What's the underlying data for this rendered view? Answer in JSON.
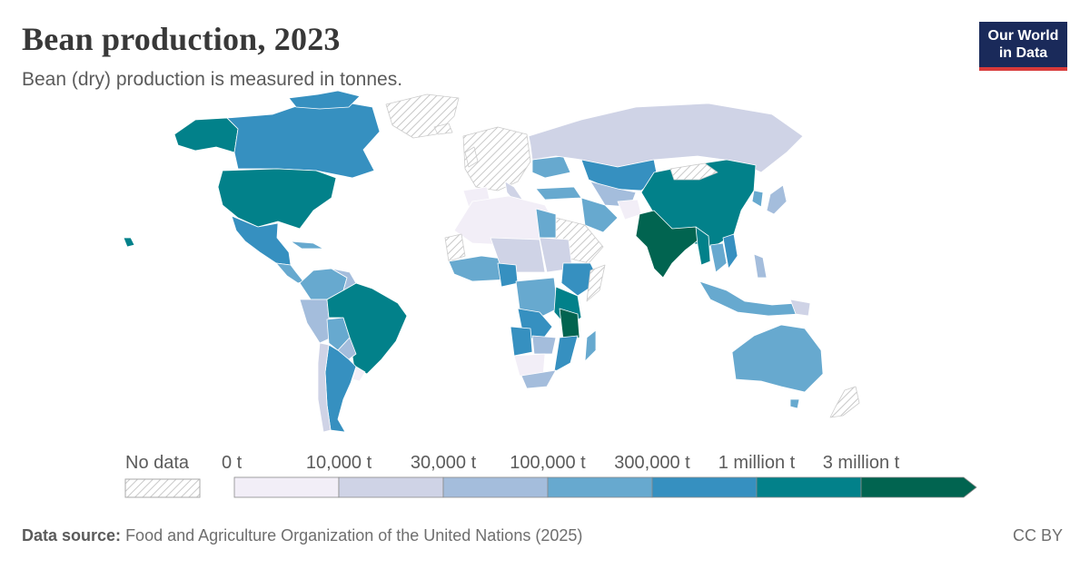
{
  "header": {
    "title": "Bean production, 2023",
    "subtitle": "Bean (dry) production is measured in tonnes."
  },
  "logo": {
    "line1": "Our World",
    "line2": "in Data"
  },
  "legend": {
    "no_data_label": "No data",
    "bins": [
      {
        "label": "0 t",
        "color": "#f2eef7"
      },
      {
        "label": "10,000 t",
        "color": "#cfd3e6"
      },
      {
        "label": "30,000 t",
        "color": "#a4bddc"
      },
      {
        "label": "100,000 t",
        "color": "#67a9cf"
      },
      {
        "label": "300,000 t",
        "color": "#3690c0"
      },
      {
        "label": "1 million t",
        "color": "#02818a"
      },
      {
        "label": "3 million t",
        "color": "#016450"
      }
    ]
  },
  "footer": {
    "source_label": "Data source:",
    "source_text": "Food and Agriculture Organization of the United Nations (2025)",
    "license": "CC BY"
  },
  "colors": {
    "bin0": "#f2eef7",
    "bin1": "#cfd3e6",
    "bin2": "#a4bddc",
    "bin3": "#67a9cf",
    "bin4": "#3690c0",
    "bin5": "#02818a",
    "bin6": "#016450",
    "nodata": "#e8e8e8"
  }
}
